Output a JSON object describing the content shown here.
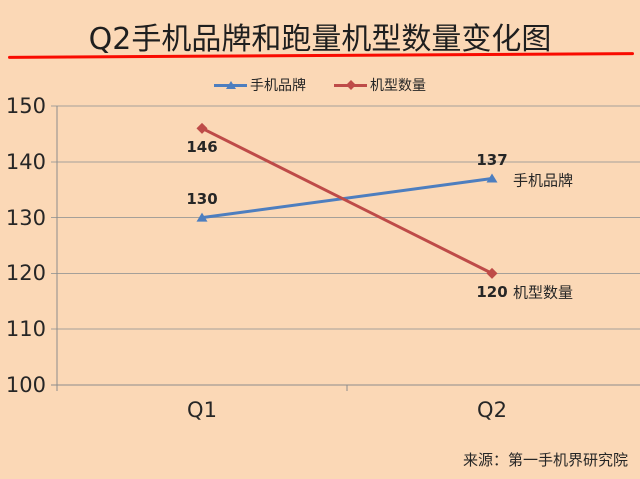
{
  "page": {
    "background": "#FBD8B6"
  },
  "header": {
    "title": "Q2手机品牌和跑量机型数量变化图",
    "underline_color": "#F90B00"
  },
  "legend": {
    "items": [
      {
        "label": "手机品牌",
        "color": "#4D7EBF",
        "marker": "triangle"
      },
      {
        "label": "机型数量",
        "color": "#BE4B48",
        "marker": "diamond"
      }
    ]
  },
  "chart_data": {
    "type": "line",
    "title": "Q2手机品牌和跑量机型数量变化图",
    "categories": [
      "Q1",
      "Q2"
    ],
    "series": [
      {
        "name": "手机品牌",
        "values": [
          130,
          137
        ],
        "color": "#4D7EBF",
        "marker": "triangle",
        "label_side": "above",
        "end_label": "手机品牌"
      },
      {
        "name": "机型数量",
        "values": [
          146,
          120
        ],
        "color": "#BE4B48",
        "marker": "diamond",
        "label_side": "below",
        "end_label": "机型数量"
      }
    ],
    "xlabel": "",
    "ylabel": "",
    "ylim": [
      100,
      150
    ],
    "yticks": [
      100,
      110,
      120,
      130,
      140,
      150
    ],
    "grid": true,
    "legend_position": "top",
    "grid_color": "#A5A099",
    "axis_color": "#8C8C8C",
    "text_color": "#262626"
  },
  "footer": {
    "source": "来源：第一手机界研究院"
  }
}
